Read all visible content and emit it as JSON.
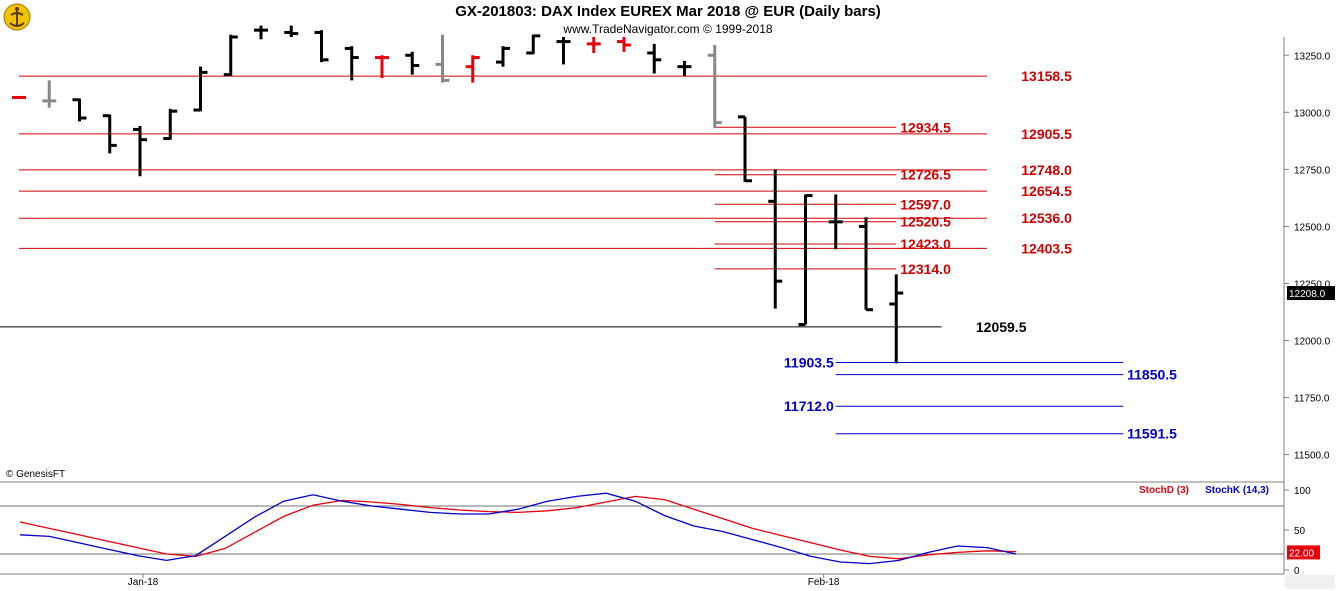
{
  "header": {
    "title": "GX-201803:  DAX Index EUREX Mar 2018 @ EUR  (Daily bars)",
    "subtitle": "www.TradeNavigator.com © 1999-2018",
    "credit": "© GenesisFT"
  },
  "colors": {
    "up": "#000000",
    "down": "#e8000b",
    "neutral": "#888888",
    "resistance": "#d40000",
    "support": "#0000cc",
    "pivot": "#000000",
    "stoch_d": "#e8000b",
    "stoch_k": "#0000cc",
    "price_tag_bg": "#000000",
    "stoch_tag_bg": "#e8000b"
  },
  "chart_data": [
    {
      "type": "ohlc",
      "title": "GX-201803:  DAX Index EUREX Mar 2018 @ EUR  (Daily bars)",
      "ylim": [
        11380,
        13330
      ],
      "y_ticks": [
        "13250.0",
        "13000.0",
        "12750.0",
        "12500.0",
        "12250.0",
        "12000.0",
        "11750.0",
        "11500.0"
      ],
      "x_ticks": [
        "Jan-18",
        "Feb-18"
      ],
      "last_price": "12208.0",
      "bars": [
        {
          "o": 13065,
          "h": 13065,
          "l": 13065,
          "c": 13065,
          "color": "down"
        },
        {
          "o": 13050,
          "h": 13140,
          "l": 13020,
          "c": 13050,
          "color": "neutral"
        },
        {
          "o": 13055,
          "h": 13060,
          "l": 12960,
          "c": 12975,
          "color": "up"
        },
        {
          "o": 12985,
          "h": 12990,
          "l": 12820,
          "c": 12855,
          "color": "up"
        },
        {
          "o": 12925,
          "h": 12940,
          "l": 12720,
          "c": 12880,
          "color": "up"
        },
        {
          "o": 12885,
          "h": 13015,
          "l": 12880,
          "c": 13005,
          "color": "up"
        },
        {
          "o": 13010,
          "h": 13200,
          "l": 13005,
          "c": 13175,
          "color": "up"
        },
        {
          "o": 13165,
          "h": 13340,
          "l": 13160,
          "c": 13330,
          "color": "up"
        },
        {
          "o": 13360,
          "h": 13380,
          "l": 13320,
          "c": 13360,
          "color": "up"
        },
        {
          "o": 13350,
          "h": 13380,
          "l": 13330,
          "c": 13345,
          "color": "up"
        },
        {
          "o": 13350,
          "h": 13360,
          "l": 13220,
          "c": 13230,
          "color": "up"
        },
        {
          "o": 13280,
          "h": 13290,
          "l": 13140,
          "c": 13240,
          "color": "up"
        },
        {
          "o": 13240,
          "h": 13250,
          "l": 13150,
          "c": 13240,
          "color": "down"
        },
        {
          "o": 13250,
          "h": 13265,
          "l": 13165,
          "c": 13205,
          "color": "up"
        },
        {
          "o": 13210,
          "h": 13340,
          "l": 13130,
          "c": 13140,
          "color": "neutral"
        },
        {
          "o": 13200,
          "h": 13250,
          "l": 13130,
          "c": 13240,
          "color": "down"
        },
        {
          "o": 13220,
          "h": 13290,
          "l": 13200,
          "c": 13280,
          "color": "up"
        },
        {
          "o": 13260,
          "h": 13340,
          "l": 13255,
          "c": 13335,
          "color": "up"
        },
        {
          "o": 13310,
          "h": 13330,
          "l": 13210,
          "c": 13310,
          "color": "up"
        },
        {
          "o": 13300,
          "h": 13330,
          "l": 13260,
          "c": 13300,
          "color": "down"
        },
        {
          "o": 13310,
          "h": 13330,
          "l": 13265,
          "c": 13295,
          "color": "down"
        },
        {
          "o": 13260,
          "h": 13300,
          "l": 13170,
          "c": 13230,
          "color": "up"
        },
        {
          "o": 13200,
          "h": 13225,
          "l": 13160,
          "c": 13200,
          "color": "up"
        },
        {
          "o": 13250,
          "h": 13295,
          "l": 12930,
          "c": 12955,
          "color": "neutral"
        },
        {
          "o": 12980,
          "h": 12980,
          "l": 12695,
          "c": 12700,
          "color": "up"
        },
        {
          "o": 12610,
          "h": 12750,
          "l": 12140,
          "c": 12260,
          "color": "up"
        },
        {
          "o": 12070,
          "h": 12640,
          "l": 12070,
          "c": 12635,
          "color": "up"
        },
        {
          "o": 12520,
          "h": 12640,
          "l": 12400,
          "c": 12520,
          "color": "up"
        },
        {
          "o": 12500,
          "h": 12540,
          "l": 12135,
          "c": 12135,
          "color": "up"
        },
        {
          "o": 12160,
          "h": 12290,
          "l": 11900,
          "c": 12208,
          "color": "up"
        }
      ],
      "levels": [
        {
          "value": 13158.5,
          "label": "13158.5",
          "kind": "resistance",
          "x0": 0,
          "x1": 32,
          "label_at": 33
        },
        {
          "value": 12934.5,
          "label": "12934.5",
          "kind": "resistance",
          "x0": 23,
          "x1": 29,
          "label_at": 29
        },
        {
          "value": 12905.5,
          "label": "12905.5",
          "kind": "resistance",
          "x0": 0,
          "x1": 32,
          "label_at": 33
        },
        {
          "value": 12748.0,
          "label": "12748.0",
          "kind": "resistance",
          "x0": 0,
          "x1": 32,
          "label_at": 33
        },
        {
          "value": 12726.5,
          "label": "12726.5",
          "kind": "resistance",
          "x0": 23,
          "x1": 29,
          "label_at": 29
        },
        {
          "value": 12654.5,
          "label": "12654.5",
          "kind": "resistance",
          "x0": 0,
          "x1": 32,
          "label_at": 33
        },
        {
          "value": 12597.0,
          "label": "12597.0",
          "kind": "resistance",
          "x0": 23,
          "x1": 29,
          "label_at": 29
        },
        {
          "value": 12536.0,
          "label": "12536.0",
          "kind": "resistance",
          "x0": 0,
          "x1": 32,
          "label_at": 33
        },
        {
          "value": 12520.5,
          "label": "12520.5",
          "kind": "resistance",
          "x0": 23,
          "x1": 29,
          "label_at": 29
        },
        {
          "value": 12423.0,
          "label": "12423.0",
          "kind": "resistance",
          "x0": 23,
          "x1": 29,
          "label_at": 29
        },
        {
          "value": 12403.5,
          "label": "12403.5",
          "kind": "resistance",
          "x0": 0,
          "x1": 32,
          "label_at": 33
        },
        {
          "value": 12314.0,
          "label": "12314.0",
          "kind": "resistance",
          "x0": 23,
          "x1": 29,
          "label_at": 29
        },
        {
          "value": 12059.5,
          "label": "12059.5",
          "kind": "pivot",
          "x0": -20,
          "x1": 30.5,
          "label_at": 31.5
        },
        {
          "value": 11903.5,
          "label": "11903.5",
          "kind": "support",
          "x0": 27,
          "x1": 36.5,
          "label_at": 27,
          "label_side": "left"
        },
        {
          "value": 11850.5,
          "label": "11850.5",
          "kind": "support",
          "x0": 27,
          "x1": 36.5,
          "label_at": 36.5
        },
        {
          "value": 11712.0,
          "label": "11712.0",
          "kind": "support",
          "x0": 27,
          "x1": 36.5,
          "label_at": 27,
          "label_side": "left"
        },
        {
          "value": 11591.5,
          "label": "11591.5",
          "kind": "support",
          "x0": 27,
          "x1": 36.5,
          "label_at": 36.5
        }
      ]
    },
    {
      "type": "line",
      "title": "Stochastic",
      "ylim": [
        -5,
        110
      ],
      "y_ticks": [
        "100",
        "50",
        "0"
      ],
      "reference_lines": [
        80,
        20
      ],
      "last_value": "22.00",
      "series": [
        {
          "name": "StochD (3)",
          "color": "stoch_d",
          "values": [
            60,
            52,
            44,
            36,
            28,
            20,
            17,
            27,
            47,
            67,
            81,
            87,
            85,
            82,
            78,
            75,
            73,
            72,
            74,
            78,
            85,
            92,
            88,
            76,
            64,
            52,
            43,
            34,
            25,
            17,
            14,
            19,
            22,
            24,
            23
          ]
        },
        {
          "name": "StochK (14,3)",
          "color": "stoch_k",
          "values": [
            44,
            42,
            34,
            26,
            18,
            12,
            18,
            42,
            66,
            86,
            94,
            86,
            80,
            76,
            72,
            70,
            70,
            76,
            86,
            92,
            96,
            86,
            68,
            55,
            48,
            38,
            28,
            17,
            10,
            8,
            12,
            22,
            30,
            28,
            20
          ]
        }
      ]
    }
  ]
}
